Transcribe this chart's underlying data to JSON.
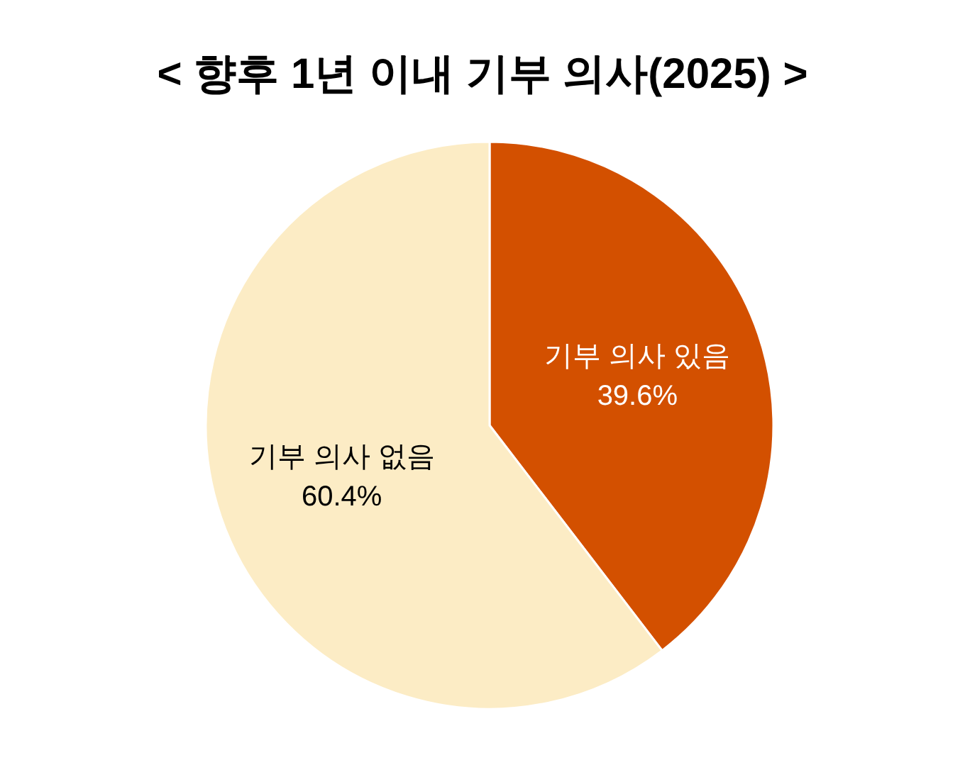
{
  "chart_data": {
    "type": "pie",
    "title": "< 향후 1년 이내 기부 의사(2025) >",
    "categories": [
      "기부 의사 있음",
      "기부 의사 없음"
    ],
    "values": [
      39.6,
      60.4
    ],
    "value_labels": [
      "39.6%",
      "60.4%"
    ],
    "colors": [
      "#d35000",
      "#fcecc5"
    ]
  }
}
